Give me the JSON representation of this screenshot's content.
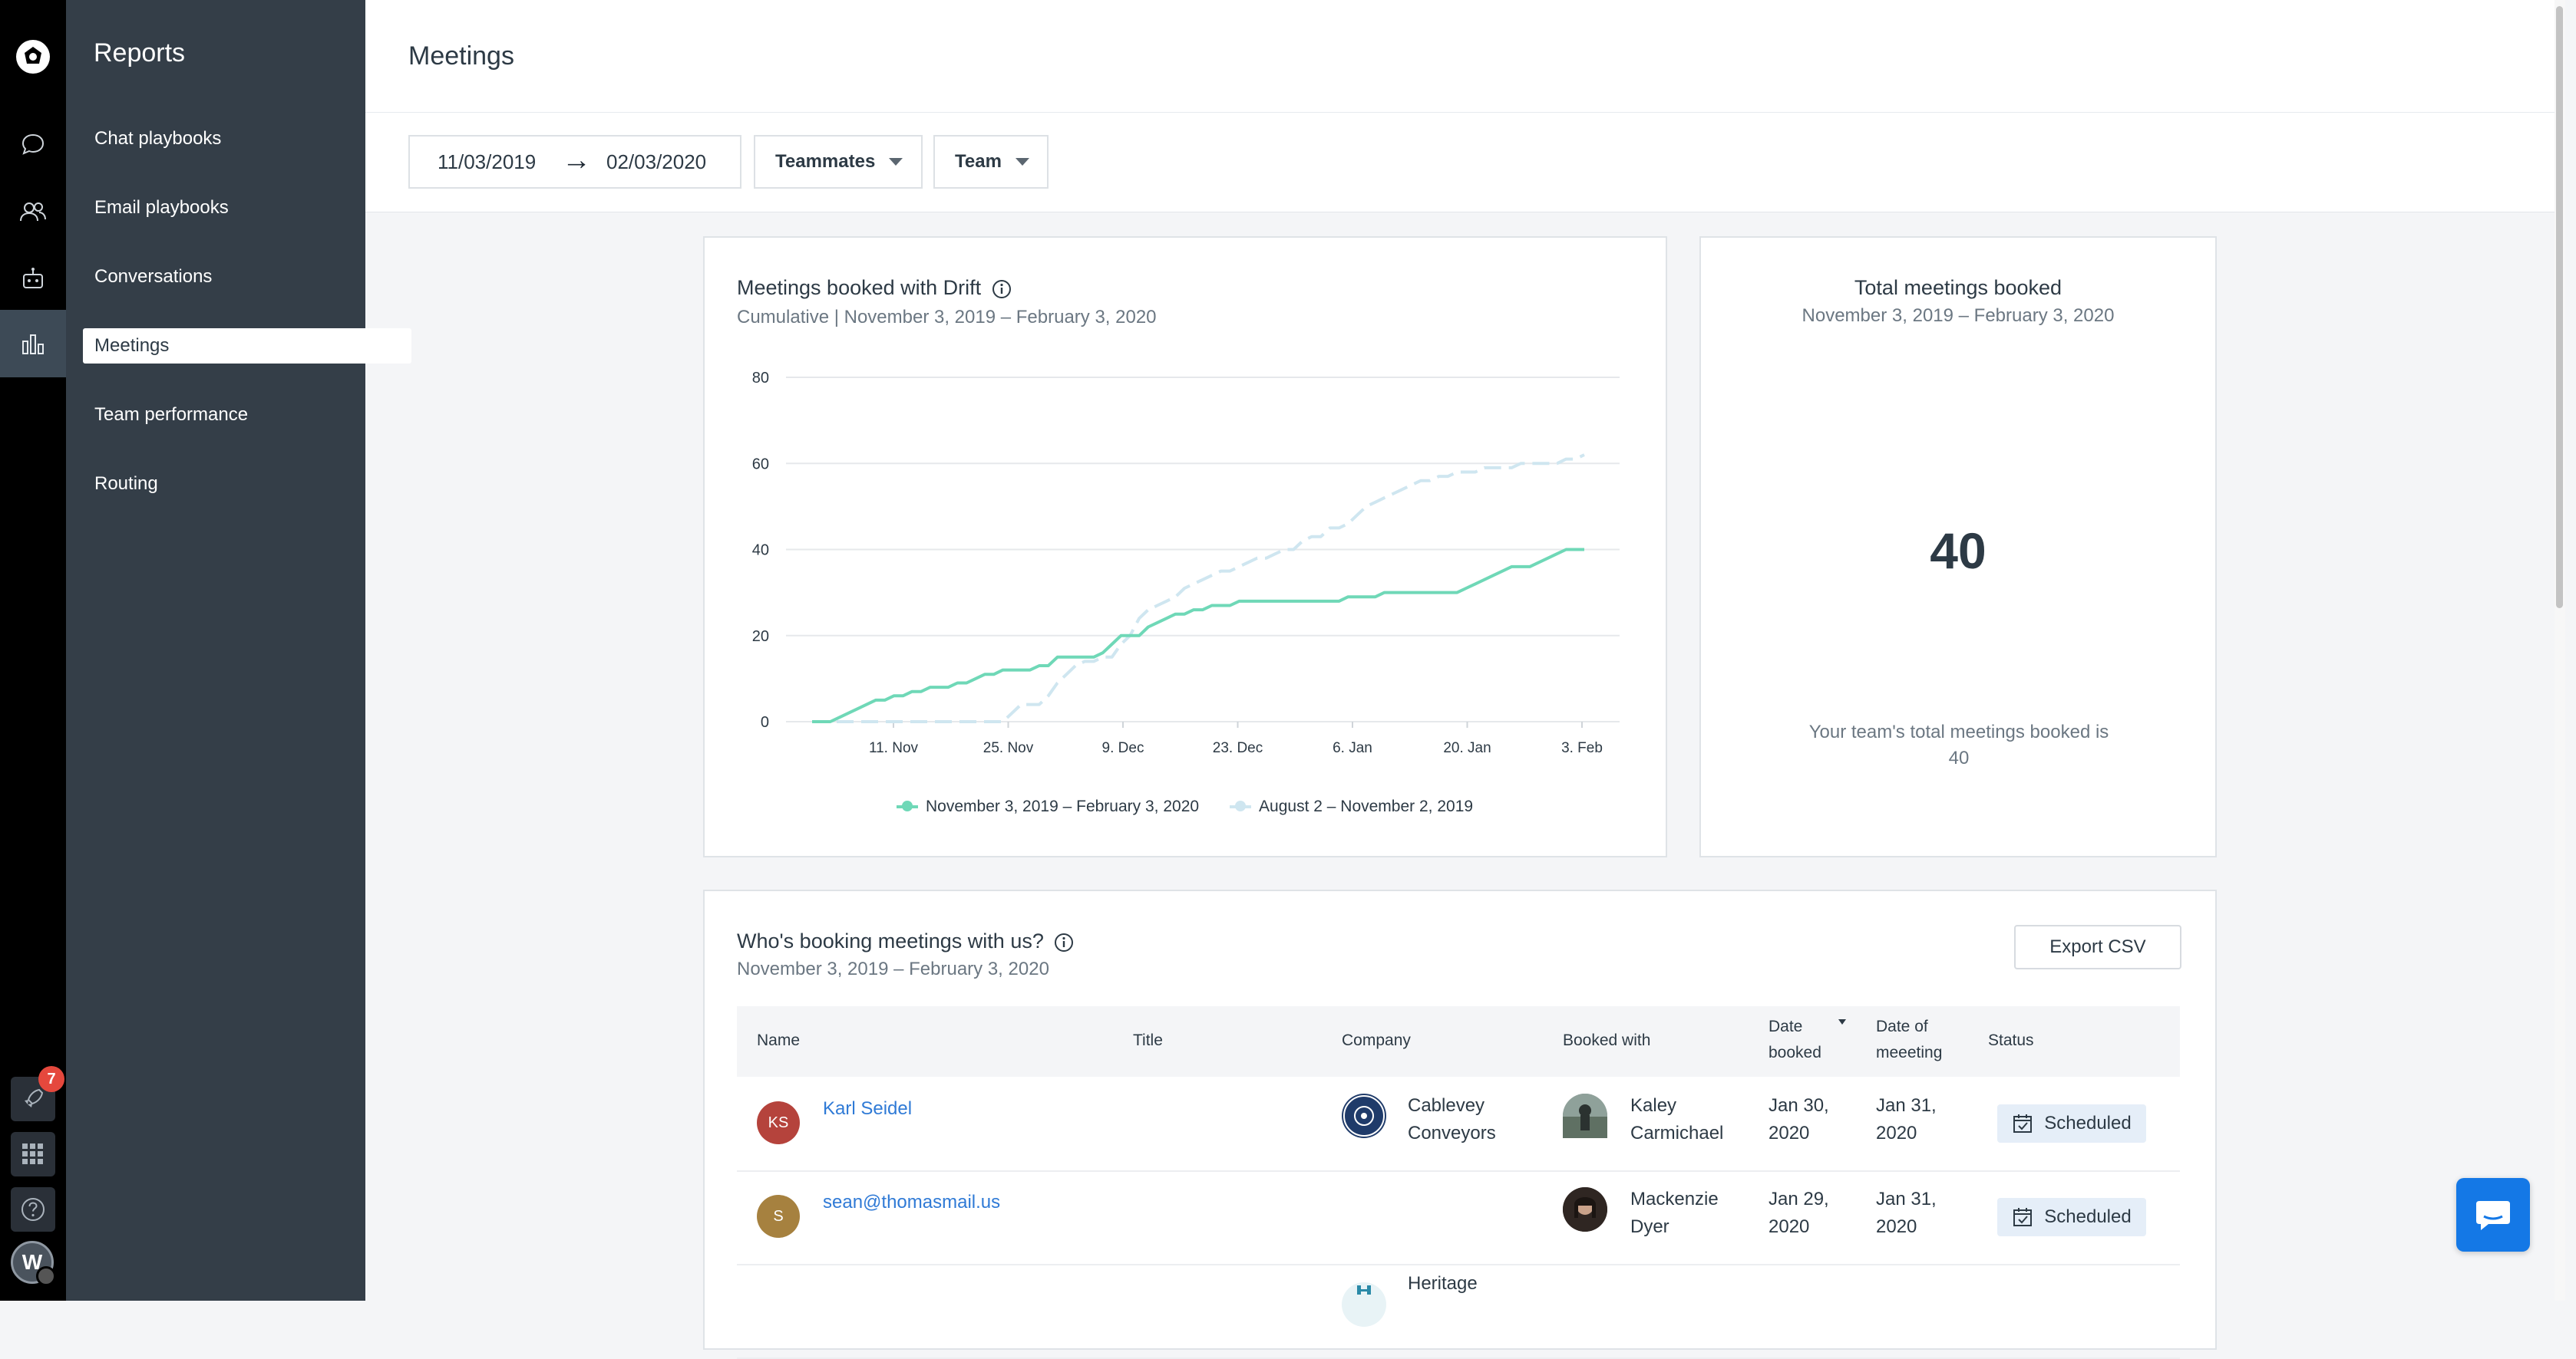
{
  "sidebar": {
    "title": "Reports",
    "items": [
      {
        "label": "Chat playbooks"
      },
      {
        "label": "Email playbooks"
      },
      {
        "label": "Conversations"
      },
      {
        "label": "Meetings"
      },
      {
        "label": "Team performance"
      },
      {
        "label": "Routing"
      }
    ]
  },
  "rail": {
    "notification_count": "7",
    "user_initial": "W"
  },
  "header": {
    "title": "Meetings",
    "date_start": "11/03/2019",
    "date_arrow": "→",
    "date_end": "02/03/2020",
    "filter_teammates": "Teammates",
    "filter_team": "Team"
  },
  "chart_card": {
    "title": "Meetings booked with Drift",
    "subtitle": "Cumulative | November 3, 2019 – February 3, 2020"
  },
  "chart_data": {
    "type": "line",
    "xlabel": "",
    "ylabel": "",
    "ylim": [
      0,
      80
    ],
    "yticks": [
      "80",
      "60",
      "40",
      "20",
      "0"
    ],
    "xticks": [
      "11. Nov",
      "25. Nov",
      "9. Dec",
      "23. Dec",
      "6. Jan",
      "20. Jan",
      "3. Feb"
    ],
    "grid": true,
    "legend_position": "bottom",
    "series": [
      {
        "name": "November 3, 2019 – February 3, 2020",
        "color": "#6fd8b7",
        "style": "solid",
        "values": [
          0,
          0,
          0,
          1,
          2,
          3,
          4,
          5,
          5,
          6,
          6,
          7,
          7,
          8,
          8,
          8,
          9,
          9,
          10,
          11,
          11,
          12,
          12,
          12,
          12,
          13,
          13,
          15,
          15,
          15,
          15,
          15,
          16,
          18,
          20,
          20,
          20,
          22,
          23,
          24,
          25,
          25,
          26,
          26,
          27,
          27,
          27,
          28,
          28,
          28,
          28,
          28,
          28,
          28,
          28,
          28,
          28,
          28,
          28,
          29,
          29,
          29,
          29,
          30,
          30,
          30,
          30,
          30,
          30,
          30,
          30,
          30,
          31,
          32,
          33,
          34,
          35,
          36,
          36,
          36,
          37,
          38,
          39,
          40,
          40,
          40
        ]
      },
      {
        "name": "August 2 – November 2, 2019",
        "color": "#cfe6f0",
        "style": "dashed",
        "values": [
          0,
          0,
          0,
          0,
          0,
          0,
          0,
          0,
          0,
          0,
          0,
          0,
          0,
          0,
          0,
          0,
          0,
          0,
          0,
          0,
          0,
          0,
          2,
          4,
          4,
          4,
          6,
          9,
          11,
          13,
          14,
          14,
          15,
          15,
          18,
          20,
          24,
          26,
          27,
          28,
          29,
          31,
          32,
          33,
          34,
          35,
          35,
          36,
          37,
          38,
          38,
          39,
          40,
          40,
          42,
          43,
          43,
          45,
          45,
          46,
          48,
          50,
          51,
          52,
          53,
          54,
          55,
          56,
          56,
          57,
          57,
          58,
          58,
          58,
          59,
          59,
          59,
          59,
          60,
          60,
          60,
          60,
          60,
          61,
          61,
          62
        ]
      }
    ]
  },
  "total_card": {
    "title": "Total meetings booked",
    "subtitle": "November 3, 2019 – February 3, 2020",
    "value": "40",
    "footer": "Your team's total meetings booked is 40"
  },
  "table_card": {
    "title": "Who's booking meetings with us?",
    "subtitle": "November 3, 2019 – February 3, 2020",
    "export_label": "Export CSV",
    "columns": [
      "Name",
      "Title",
      "Company",
      "Booked with",
      "Date booked",
      "Date of meeeting",
      "Status"
    ],
    "rows": [
      {
        "initials": "KS",
        "avatar_color": "#b5433c",
        "name": "Karl Seidel",
        "title": "",
        "company": "Cablevey Conveyors",
        "booked_with": "Kaley Carmichael",
        "date_booked": "Jan 30, 2020",
        "date_meeting": "Jan 31, 2020",
        "status": "Scheduled"
      },
      {
        "initials": "S",
        "avatar_color": "#a6813f",
        "name": "sean@thomasmail.us",
        "title": "",
        "company": "",
        "booked_with": "Mackenzie Dyer",
        "date_booked": "Jan 29, 2020",
        "date_meeting": "Jan 31, 2020",
        "status": "Scheduled"
      },
      {
        "company": "Heritage"
      }
    ]
  }
}
